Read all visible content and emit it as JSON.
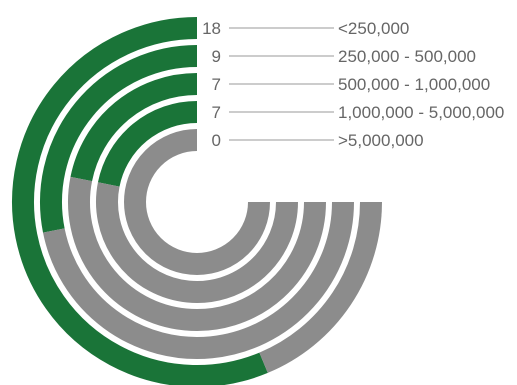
{
  "chart_data": {
    "type": "radial-bar",
    "title": "",
    "max_value": 24,
    "categories": [
      "<250,000",
      "250,000 - 500,000",
      "500,000 - 1,000,000",
      "1,000,000 - 5,000,000",
      ">5,000,000"
    ],
    "values": [
      18,
      9,
      7,
      7,
      0
    ],
    "value_labels": [
      "18",
      "9",
      "7",
      "7",
      "0"
    ],
    "colors": {
      "value": "#1a7438",
      "remainder": "#8c8c8c",
      "label_text": "#666666",
      "leader_line": "#999999"
    }
  }
}
